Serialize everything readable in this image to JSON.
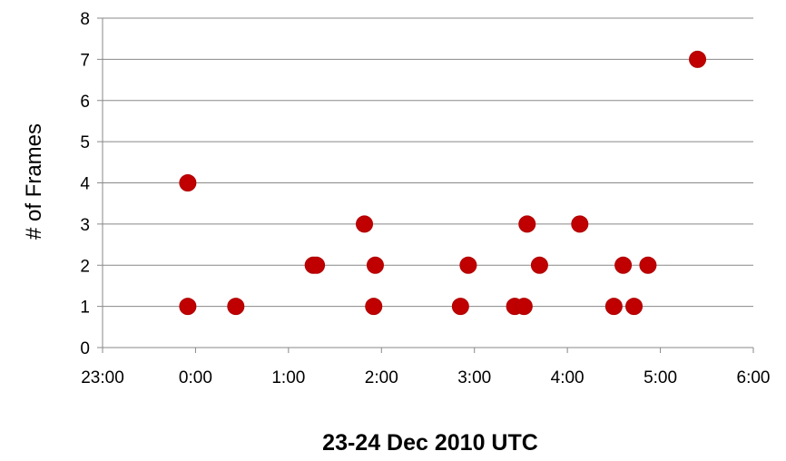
{
  "chart_data": {
    "type": "scatter",
    "title": "",
    "xlabel": "23-24 Dec 2010 UTC",
    "ylabel": "# of Frames",
    "x_tick_labels": [
      "23:00",
      "0:00",
      "1:00",
      "2:00",
      "3:00",
      "4:00",
      "5:00",
      "6:00"
    ],
    "y_tick_labels": [
      "0",
      "1",
      "2",
      "3",
      "4",
      "5",
      "6",
      "7",
      "8"
    ],
    "xlim": [
      "23:00",
      "6:00"
    ],
    "ylim": [
      0,
      8
    ],
    "grid": "horizontal",
    "legend": "none",
    "marker_color": "#c00000",
    "points": [
      {
        "x": "23:55",
        "y": 4
      },
      {
        "x": "23:55",
        "y": 1
      },
      {
        "x": "0:26",
        "y": 1
      },
      {
        "x": "1:16",
        "y": 2
      },
      {
        "x": "1:18",
        "y": 2
      },
      {
        "x": "1:49",
        "y": 3
      },
      {
        "x": "1:56",
        "y": 2
      },
      {
        "x": "1:55",
        "y": 1
      },
      {
        "x": "2:51",
        "y": 1
      },
      {
        "x": "2:56",
        "y": 2
      },
      {
        "x": "3:26",
        "y": 1
      },
      {
        "x": "3:32",
        "y": 1
      },
      {
        "x": "3:34",
        "y": 3
      },
      {
        "x": "3:42",
        "y": 2
      },
      {
        "x": "4:08",
        "y": 3
      },
      {
        "x": "4:30",
        "y": 1
      },
      {
        "x": "4:36",
        "y": 2
      },
      {
        "x": "4:43",
        "y": 1
      },
      {
        "x": "4:52",
        "y": 2
      },
      {
        "x": "5:24",
        "y": 7
      }
    ]
  }
}
